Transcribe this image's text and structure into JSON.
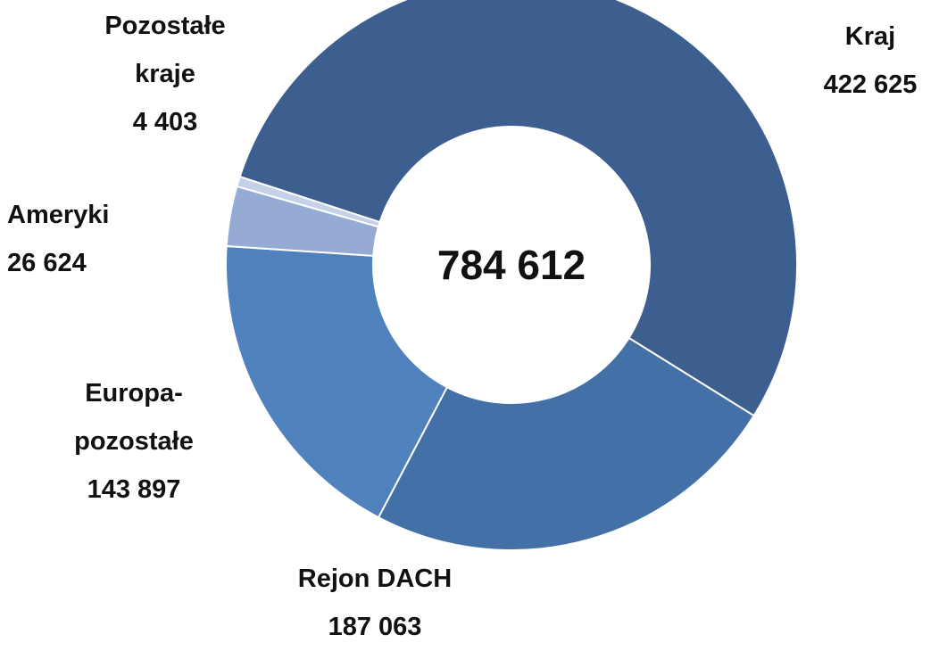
{
  "chart_data": {
    "type": "donut",
    "categories": [
      "Kraj",
      "Rejon DACH",
      "Europa-pozostałe",
      "Ameryki",
      "Pozostałe kraje"
    ],
    "values": [
      422625,
      187063,
      143897,
      26624,
      4403
    ],
    "value_labels": [
      "422 625",
      "187 063",
      "143 897",
      "26 624",
      "4 403"
    ],
    "colors": [
      "#3d5f8f",
      "#4470a8",
      "#4f81bd",
      "#95abd3",
      "#c5d1e8"
    ],
    "center_text": "784 612"
  }
}
